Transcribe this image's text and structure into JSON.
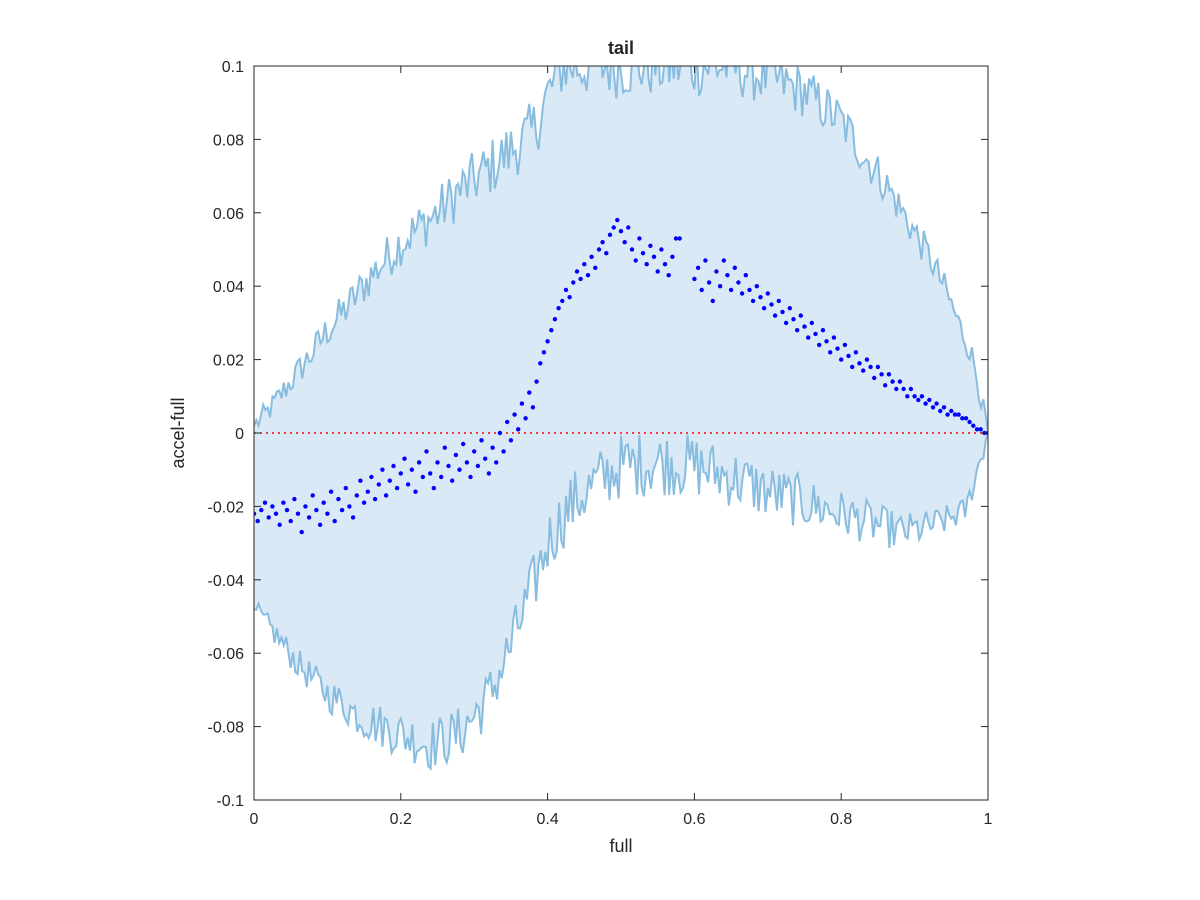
{
  "chart_data": {
    "type": "scatter",
    "title": "tail",
    "xlabel": "full",
    "ylabel": "accel-full",
    "xlim": [
      0,
      1
    ],
    "ylim": [
      -0.1,
      0.1
    ],
    "xticks": [
      0,
      0.2,
      0.4,
      0.6,
      0.8,
      1
    ],
    "xtick_labels": [
      "0",
      "0.2",
      "0.4",
      "0.6",
      "0.8",
      "1"
    ],
    "yticks": [
      -0.1,
      -0.08,
      -0.06,
      -0.04,
      -0.02,
      0,
      0.02,
      0.04,
      0.06,
      0.08,
      0.1
    ],
    "ytick_labels": [
      "-0.1",
      "-0.08",
      "-0.06",
      "-0.04",
      "-0.02",
      "0",
      "0.02",
      "0.04",
      "0.06",
      "0.08",
      "0.1"
    ],
    "grid": false,
    "reference_line": {
      "y": 0,
      "style": "dotted",
      "color": "#ff0000"
    },
    "band": {
      "color_fill": "#d9e9f5",
      "color_edge": "#88bde0",
      "upper_envelope": [
        [
          0,
          0.002
        ],
        [
          0.02,
          0.006
        ],
        [
          0.05,
          0.014
        ],
        [
          0.08,
          0.022
        ],
        [
          0.1,
          0.028
        ],
        [
          0.13,
          0.035
        ],
        [
          0.16,
          0.043
        ],
        [
          0.2,
          0.052
        ],
        [
          0.25,
          0.06
        ],
        [
          0.28,
          0.066
        ],
        [
          0.32,
          0.072
        ],
        [
          0.35,
          0.077
        ],
        [
          0.38,
          0.082
        ],
        [
          0.4,
          0.092
        ],
        [
          0.42,
          0.1
        ],
        [
          0.5,
          0.1
        ],
        [
          0.6,
          0.1
        ],
        [
          0.65,
          0.1
        ],
        [
          0.7,
          0.097
        ],
        [
          0.75,
          0.093
        ],
        [
          0.8,
          0.085
        ],
        [
          0.83,
          0.076
        ],
        [
          0.86,
          0.068
        ],
        [
          0.89,
          0.058
        ],
        [
          0.92,
          0.048
        ],
        [
          0.94,
          0.04
        ],
        [
          0.96,
          0.03
        ],
        [
          0.98,
          0.02
        ],
        [
          1,
          0.0
        ]
      ],
      "lower_envelope": [
        [
          0,
          -0.048
        ],
        [
          0.03,
          -0.055
        ],
        [
          0.06,
          -0.063
        ],
        [
          0.1,
          -0.071
        ],
        [
          0.15,
          -0.078
        ],
        [
          0.2,
          -0.082
        ],
        [
          0.24,
          -0.085
        ],
        [
          0.28,
          -0.082
        ],
        [
          0.32,
          -0.072
        ],
        [
          0.35,
          -0.058
        ],
        [
          0.38,
          -0.042
        ],
        [
          0.4,
          -0.03
        ],
        [
          0.43,
          -0.02
        ],
        [
          0.47,
          -0.013
        ],
        [
          0.5,
          -0.009
        ],
        [
          0.55,
          -0.008
        ],
        [
          0.6,
          -0.009
        ],
        [
          0.65,
          -0.012
        ],
        [
          0.7,
          -0.016
        ],
        [
          0.75,
          -0.019
        ],
        [
          0.8,
          -0.022
        ],
        [
          0.85,
          -0.025
        ],
        [
          0.88,
          -0.027
        ],
        [
          0.91,
          -0.026
        ],
        [
          0.94,
          -0.024
        ],
        [
          0.97,
          -0.021
        ],
        [
          1,
          0.0
        ]
      ]
    },
    "series": [
      {
        "type": "scatter",
        "color": "#0000ff",
        "points": [
          [
            0.0,
            -0.022
          ],
          [
            0.005,
            -0.024
          ],
          [
            0.01,
            -0.021
          ],
          [
            0.015,
            -0.019
          ],
          [
            0.02,
            -0.023
          ],
          [
            0.025,
            -0.02
          ],
          [
            0.03,
            -0.022
          ],
          [
            0.035,
            -0.025
          ],
          [
            0.04,
            -0.019
          ],
          [
            0.045,
            -0.021
          ],
          [
            0.05,
            -0.024
          ],
          [
            0.055,
            -0.018
          ],
          [
            0.06,
            -0.022
          ],
          [
            0.065,
            -0.027
          ],
          [
            0.07,
            -0.02
          ],
          [
            0.075,
            -0.023
          ],
          [
            0.08,
            -0.017
          ],
          [
            0.085,
            -0.021
          ],
          [
            0.09,
            -0.025
          ],
          [
            0.095,
            -0.019
          ],
          [
            0.1,
            -0.022
          ],
          [
            0.105,
            -0.016
          ],
          [
            0.11,
            -0.024
          ],
          [
            0.115,
            -0.018
          ],
          [
            0.12,
            -0.021
          ],
          [
            0.125,
            -0.015
          ],
          [
            0.13,
            -0.02
          ],
          [
            0.135,
            -0.023
          ],
          [
            0.14,
            -0.017
          ],
          [
            0.145,
            -0.013
          ],
          [
            0.15,
            -0.019
          ],
          [
            0.155,
            -0.016
          ],
          [
            0.16,
            -0.012
          ],
          [
            0.165,
            -0.018
          ],
          [
            0.17,
            -0.014
          ],
          [
            0.175,
            -0.01
          ],
          [
            0.18,
            -0.017
          ],
          [
            0.185,
            -0.013
          ],
          [
            0.19,
            -0.009
          ],
          [
            0.195,
            -0.015
          ],
          [
            0.2,
            -0.011
          ],
          [
            0.205,
            -0.007
          ],
          [
            0.21,
            -0.014
          ],
          [
            0.215,
            -0.01
          ],
          [
            0.22,
            -0.016
          ],
          [
            0.225,
            -0.008
          ],
          [
            0.23,
            -0.012
          ],
          [
            0.235,
            -0.005
          ],
          [
            0.24,
            -0.011
          ],
          [
            0.245,
            -0.015
          ],
          [
            0.25,
            -0.008
          ],
          [
            0.255,
            -0.012
          ],
          [
            0.26,
            -0.004
          ],
          [
            0.265,
            -0.009
          ],
          [
            0.27,
            -0.013
          ],
          [
            0.275,
            -0.006
          ],
          [
            0.28,
            -0.01
          ],
          [
            0.285,
            -0.003
          ],
          [
            0.29,
            -0.008
          ],
          [
            0.295,
            -0.012
          ],
          [
            0.3,
            -0.005
          ],
          [
            0.305,
            -0.009
          ],
          [
            0.31,
            -0.002
          ],
          [
            0.315,
            -0.007
          ],
          [
            0.32,
            -0.011
          ],
          [
            0.325,
            -0.004
          ],
          [
            0.33,
            -0.008
          ],
          [
            0.335,
            0.0
          ],
          [
            0.34,
            -0.005
          ],
          [
            0.345,
            0.003
          ],
          [
            0.35,
            -0.002
          ],
          [
            0.355,
            0.005
          ],
          [
            0.36,
            0.001
          ],
          [
            0.365,
            0.008
          ],
          [
            0.37,
            0.004
          ],
          [
            0.375,
            0.011
          ],
          [
            0.38,
            0.007
          ],
          [
            0.385,
            0.014
          ],
          [
            0.39,
            0.019
          ],
          [
            0.395,
            0.022
          ],
          [
            0.4,
            0.025
          ],
          [
            0.405,
            0.028
          ],
          [
            0.41,
            0.031
          ],
          [
            0.415,
            0.034
          ],
          [
            0.42,
            0.036
          ],
          [
            0.425,
            0.039
          ],
          [
            0.43,
            0.037
          ],
          [
            0.435,
            0.041
          ],
          [
            0.44,
            0.044
          ],
          [
            0.445,
            0.042
          ],
          [
            0.45,
            0.046
          ],
          [
            0.455,
            0.043
          ],
          [
            0.46,
            0.048
          ],
          [
            0.465,
            0.045
          ],
          [
            0.47,
            0.05
          ],
          [
            0.475,
            0.052
          ],
          [
            0.48,
            0.049
          ],
          [
            0.485,
            0.054
          ],
          [
            0.49,
            0.056
          ],
          [
            0.495,
            0.058
          ],
          [
            0.5,
            0.055
          ],
          [
            0.505,
            0.052
          ],
          [
            0.51,
            0.056
          ],
          [
            0.515,
            0.05
          ],
          [
            0.52,
            0.047
          ],
          [
            0.525,
            0.053
          ],
          [
            0.53,
            0.049
          ],
          [
            0.535,
            0.046
          ],
          [
            0.54,
            0.051
          ],
          [
            0.545,
            0.048
          ],
          [
            0.55,
            0.044
          ],
          [
            0.555,
            0.05
          ],
          [
            0.56,
            0.046
          ],
          [
            0.565,
            0.043
          ],
          [
            0.57,
            0.048
          ],
          [
            0.575,
            0.053
          ],
          [
            0.58,
            0.053
          ],
          [
            0.6,
            0.042
          ],
          [
            0.605,
            0.045
          ],
          [
            0.61,
            0.039
          ],
          [
            0.615,
            0.047
          ],
          [
            0.62,
            0.041
          ],
          [
            0.625,
            0.036
          ],
          [
            0.63,
            0.044
          ],
          [
            0.635,
            0.04
          ],
          [
            0.64,
            0.047
          ],
          [
            0.645,
            0.043
          ],
          [
            0.65,
            0.039
          ],
          [
            0.655,
            0.045
          ],
          [
            0.66,
            0.041
          ],
          [
            0.665,
            0.038
          ],
          [
            0.67,
            0.043
          ],
          [
            0.675,
            0.039
          ],
          [
            0.68,
            0.036
          ],
          [
            0.685,
            0.04
          ],
          [
            0.69,
            0.037
          ],
          [
            0.695,
            0.034
          ],
          [
            0.7,
            0.038
          ],
          [
            0.705,
            0.035
          ],
          [
            0.71,
            0.032
          ],
          [
            0.715,
            0.036
          ],
          [
            0.72,
            0.033
          ],
          [
            0.725,
            0.03
          ],
          [
            0.73,
            0.034
          ],
          [
            0.735,
            0.031
          ],
          [
            0.74,
            0.028
          ],
          [
            0.745,
            0.032
          ],
          [
            0.75,
            0.029
          ],
          [
            0.755,
            0.026
          ],
          [
            0.76,
            0.03
          ],
          [
            0.765,
            0.027
          ],
          [
            0.77,
            0.024
          ],
          [
            0.775,
            0.028
          ],
          [
            0.78,
            0.025
          ],
          [
            0.785,
            0.022
          ],
          [
            0.79,
            0.026
          ],
          [
            0.795,
            0.023
          ],
          [
            0.8,
            0.02
          ],
          [
            0.805,
            0.024
          ],
          [
            0.81,
            0.021
          ],
          [
            0.815,
            0.018
          ],
          [
            0.82,
            0.022
          ],
          [
            0.825,
            0.019
          ],
          [
            0.83,
            0.017
          ],
          [
            0.835,
            0.02
          ],
          [
            0.84,
            0.018
          ],
          [
            0.845,
            0.015
          ],
          [
            0.85,
            0.018
          ],
          [
            0.855,
            0.016
          ],
          [
            0.86,
            0.013
          ],
          [
            0.865,
            0.016
          ],
          [
            0.87,
            0.014
          ],
          [
            0.875,
            0.012
          ],
          [
            0.88,
            0.014
          ],
          [
            0.885,
            0.012
          ],
          [
            0.89,
            0.01
          ],
          [
            0.895,
            0.012
          ],
          [
            0.9,
            0.01
          ],
          [
            0.905,
            0.009
          ],
          [
            0.91,
            0.01
          ],
          [
            0.915,
            0.008
          ],
          [
            0.92,
            0.009
          ],
          [
            0.925,
            0.007
          ],
          [
            0.93,
            0.008
          ],
          [
            0.935,
            0.006
          ],
          [
            0.94,
            0.007
          ],
          [
            0.945,
            0.005
          ],
          [
            0.95,
            0.006
          ],
          [
            0.955,
            0.005
          ],
          [
            0.96,
            0.005
          ],
          [
            0.965,
            0.004
          ],
          [
            0.97,
            0.004
          ],
          [
            0.975,
            0.003
          ],
          [
            0.98,
            0.002
          ],
          [
            0.985,
            0.001
          ],
          [
            0.99,
            0.001
          ],
          [
            0.995,
            0.0
          ],
          [
            1.0,
            0.0
          ]
        ]
      }
    ]
  }
}
